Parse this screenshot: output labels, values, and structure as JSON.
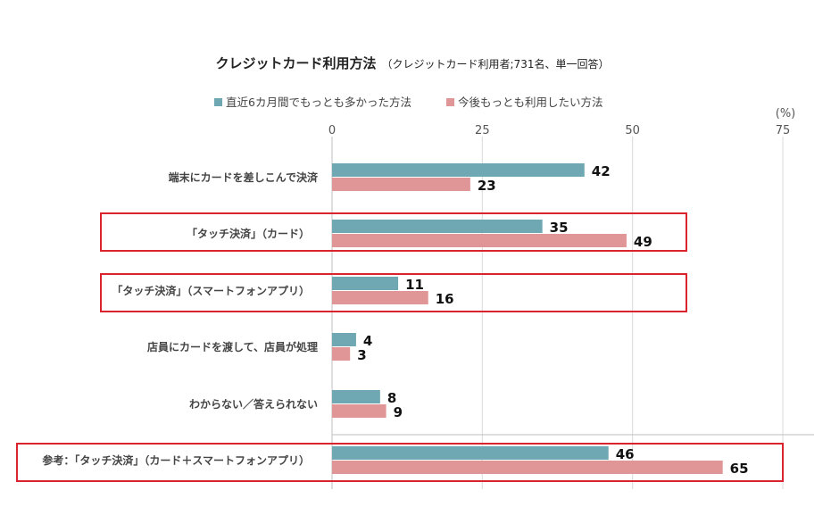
{
  "chart_data": {
    "type": "bar",
    "orientation": "horizontal",
    "title": "クレジットカード利用方法",
    "subtitle": "（クレジットカード利用者;731名、単一回答）",
    "unit_label": "(%)",
    "x_ticks": [
      0,
      25,
      50,
      75
    ],
    "xlim": [
      0,
      75
    ],
    "grid": true,
    "legend_position": "top",
    "categories": [
      "端末にカードを差しこんで決済",
      "「タッチ決済」（カード）",
      "「タッチ決済」（スマートフォンアプリ）",
      "店員にカードを渡して、店員が処理",
      "わからない／答えられない",
      "参考：「タッチ決済」（カード＋スマートフォンアプリ）"
    ],
    "highlighted": [
      false,
      true,
      true,
      false,
      false,
      true
    ],
    "series": [
      {
        "name": "直近6カ月間でもっとも多かった方法",
        "color": "#6FA8B2",
        "values": [
          42,
          35,
          11,
          4,
          8,
          46
        ]
      },
      {
        "name": "今後もっとも利用したい方法",
        "color": "#E09596",
        "values": [
          23,
          49,
          16,
          3,
          9,
          65
        ]
      }
    ],
    "highlight_color": "#D9232D"
  }
}
